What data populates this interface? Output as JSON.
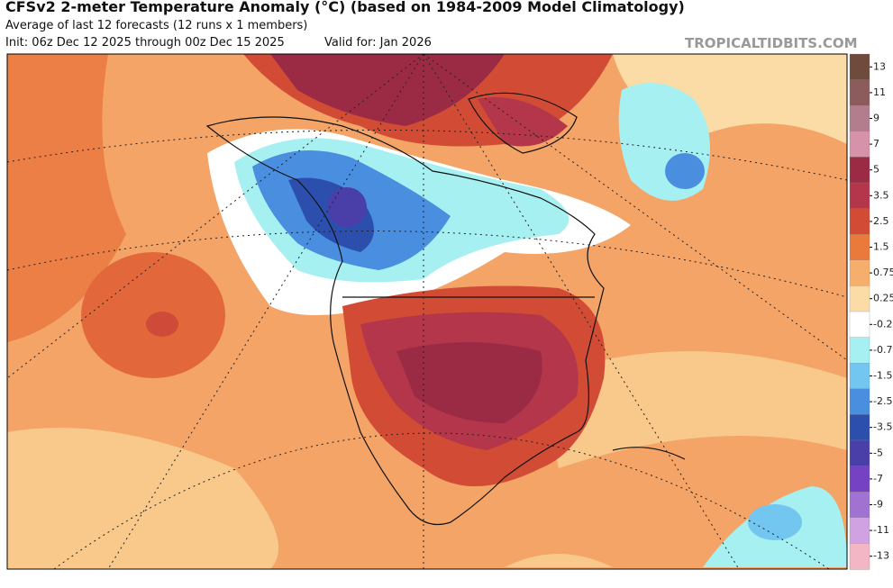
{
  "header": {
    "title": "CFSv2 2-meter Temperature Anomaly (°C) (based on 1984-2009 Model Climatology)",
    "subtitle": "Average of last 12 forecasts (12 runs x 1 members)",
    "init": "Init: 06z Dec 12 2025 through 00z Dec 15 2025",
    "valid": "Valid for: Jan 2026",
    "source": "TROPICALTIDBITS.COM"
  },
  "colorbar": {
    "items": [
      {
        "label": "13",
        "color": "#6e4b3c"
      },
      {
        "label": "11",
        "color": "#8c5c5c"
      },
      {
        "label": "9",
        "color": "#b27d8c"
      },
      {
        "label": "7",
        "color": "#d592a8"
      },
      {
        "label": "5",
        "color": "#9b2b45"
      },
      {
        "label": "3.5",
        "color": "#b3364a"
      },
      {
        "label": "2.5",
        "color": "#d24c35"
      },
      {
        "label": "1.5",
        "color": "#ea7a3c"
      },
      {
        "label": "0.75",
        "color": "#f5ae6c"
      },
      {
        "label": "0.25",
        "color": "#fbdca6"
      },
      {
        "label": "-0.2",
        "color": "#ffffff"
      },
      {
        "label": "-0.7",
        "color": "#a6f0f2"
      },
      {
        "label": "-1.5",
        "color": "#72c6f0"
      },
      {
        "label": "-2.5",
        "color": "#4a8ee0"
      },
      {
        "label": "-3.5",
        "color": "#2c4fae"
      },
      {
        "label": "-5",
        "color": "#4a3fa8"
      },
      {
        "label": "-7",
        "color": "#7442c2"
      },
      {
        "label": "-9",
        "color": "#a072d2"
      },
      {
        "label": "-11",
        "color": "#d0a2e2"
      },
      {
        "label": "-13",
        "color": "#f2b6c4"
      }
    ]
  }
}
